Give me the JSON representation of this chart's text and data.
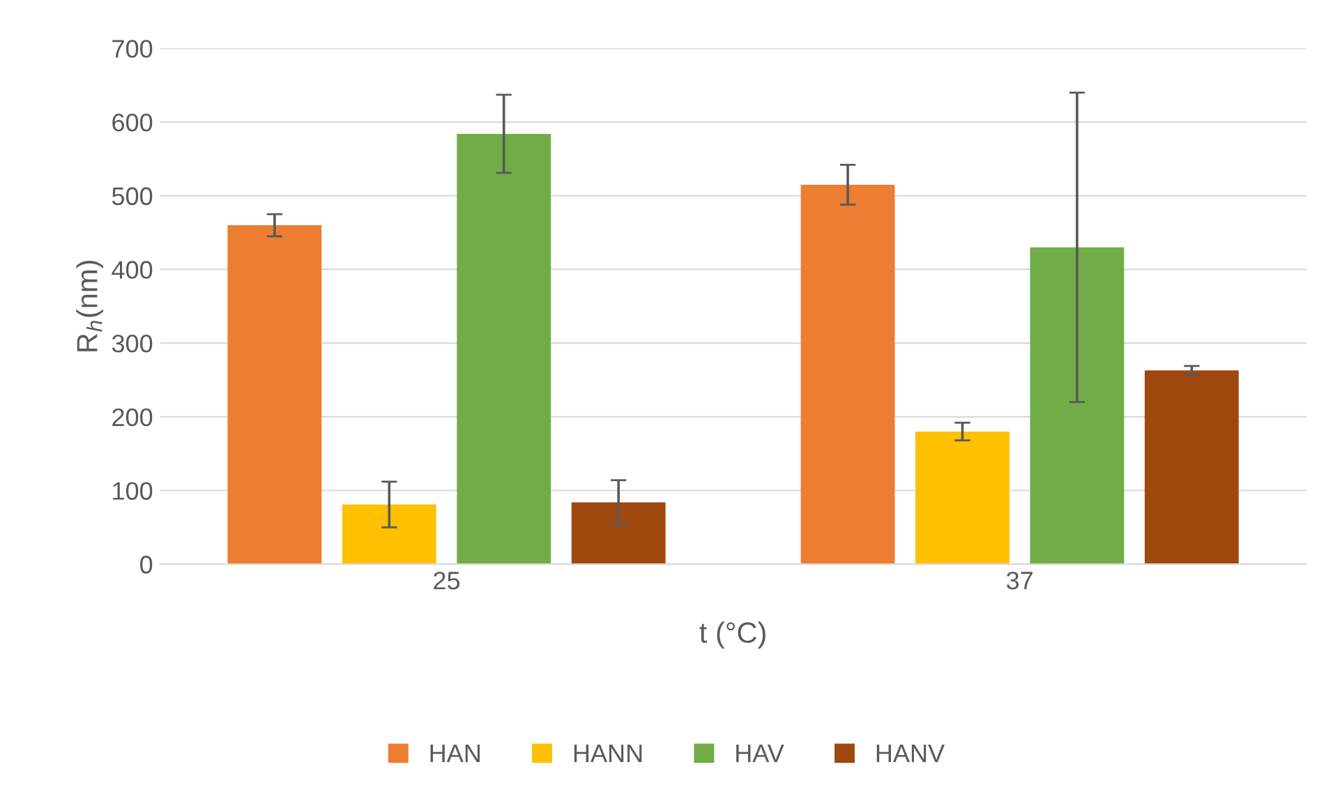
{
  "chart_data": {
    "type": "bar",
    "categories": [
      "25",
      "37"
    ],
    "xlabel": "t (°C)",
    "ylabel": "R$_{h}$(nm)",
    "series": [
      {
        "name": "HAN",
        "color": "#ed7d31",
        "values": [
          460,
          515
        ],
        "errors": [
          15,
          27
        ]
      },
      {
        "name": "HANN",
        "color": "#ffc000",
        "values": [
          81,
          180
        ],
        "errors": [
          31,
          12
        ]
      },
      {
        "name": "HAV",
        "color": "#70ad47",
        "values": [
          584,
          430
        ],
        "errors": [
          53,
          210
        ]
      },
      {
        "name": "HANV",
        "color": "#9e480e",
        "values": [
          84,
          263
        ],
        "errors": [
          30,
          6
        ]
      }
    ],
    "ylim": [
      0,
      700
    ],
    "yticks": [
      0,
      100,
      200,
      300,
      400,
      500,
      600,
      700
    ],
    "grid": "y",
    "legend": "bottom"
  }
}
